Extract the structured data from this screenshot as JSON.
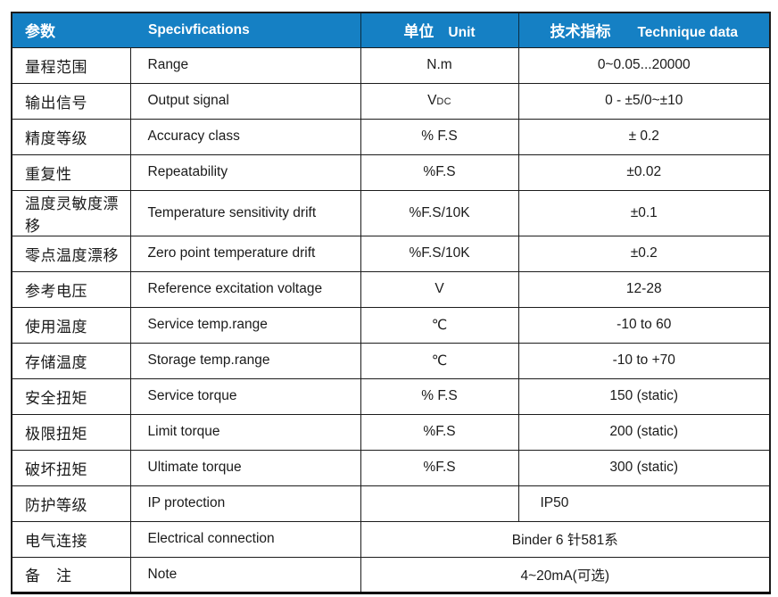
{
  "colors": {
    "page_bg": "#ffffff",
    "header_bg": "#1580c4",
    "header_text": "#ffffff",
    "header_divider": "#0b2c41",
    "border": "#1c1c1c",
    "text": "#1a1a1a"
  },
  "table": {
    "header": {
      "param": "参数",
      "spec": "Specivfications",
      "unit_cn": "单位",
      "unit_en": "Unit",
      "tech_cn": "技术指标",
      "tech_en": "Technique data"
    },
    "rows": [
      {
        "param": "量程范围",
        "spec": "Range",
        "unit": "N.m",
        "value": "0~0.05...20000"
      },
      {
        "param": "输出信号",
        "spec": "Output signal",
        "unit": "V",
        "unit_sub": "DC",
        "value": "0 - ±5/0~±10"
      },
      {
        "param": "精度等级",
        "spec": "Accuracy class",
        "unit": "% F.S",
        "value": "± 0.2"
      },
      {
        "param": "重复性",
        "spec": "Repeatability",
        "unit": "%F.S",
        "value": "±0.02"
      },
      {
        "param": "温度灵敏度漂移",
        "spec": "Temperature sensitivity drift",
        "unit": "%F.S/10K",
        "value": "±0.1"
      },
      {
        "param": "零点温度漂移",
        "spec": "Zero point temperature drift",
        "unit": "%F.S/10K",
        "value": "±0.2"
      },
      {
        "param": "参考电压",
        "spec": "Reference excitation voltage",
        "unit": "V",
        "value": "12-28"
      },
      {
        "param": "使用温度",
        "spec": "Service temp.range",
        "unit": "℃",
        "value": "-10 to 60"
      },
      {
        "param": "存储温度",
        "spec": "Storage temp.range",
        "unit": "℃",
        "value": "-10 to +70"
      },
      {
        "param": "安全扭矩",
        "spec": "Service torque",
        "unit": "% F.S",
        "value": "150 (static)"
      },
      {
        "param": "极限扭矩",
        "spec": "Limit torque",
        "unit": "%F.S",
        "value": "200 (static)"
      },
      {
        "param": "破坏扭矩",
        "spec": "Ultimate torque",
        "unit": "%F.S",
        "value": "300 (static)"
      },
      {
        "param": "防护等级",
        "spec": "IP protection",
        "unit": "",
        "value": "IP50",
        "value_align": "left"
      },
      {
        "param": "电气连接",
        "spec": "Electrical connection",
        "merged": true,
        "value": "Binder 6 针581系"
      },
      {
        "param": "备　注",
        "spec": "Note",
        "merged": true,
        "value": "4~20mA(可选)"
      }
    ]
  }
}
